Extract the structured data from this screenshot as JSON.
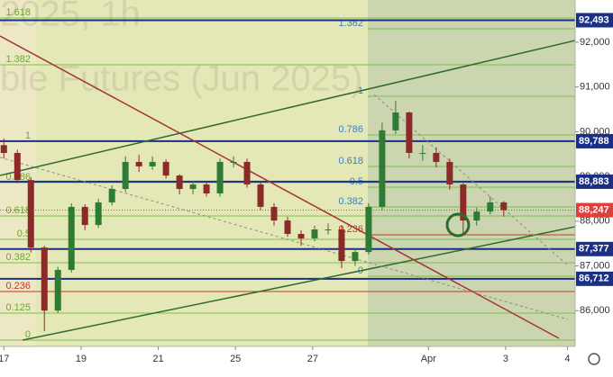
{
  "chart_data": {
    "type": "candlestick",
    "watermark": [
      "2025, 1h",
      "ble Futures (Jun 2025)"
    ],
    "xlim": [
      -0.1,
      14.8
    ],
    "xticks": [
      {
        "value": 0,
        "label": "17"
      },
      {
        "value": 2,
        "label": "19"
      },
      {
        "value": 4,
        "label": "21"
      },
      {
        "value": 6,
        "label": "25"
      },
      {
        "value": 8,
        "label": "27"
      },
      {
        "value": 11,
        "label": "Apr"
      },
      {
        "value": 13,
        "label": "3"
      },
      {
        "value": 14.6,
        "label": "4"
      }
    ],
    "ylim": [
      85200,
      92945
    ],
    "yticks": [
      {
        "value": 86000,
        "label": "86,000"
      },
      {
        "value": 87000,
        "label": "87,000"
      },
      {
        "value": 88000,
        "label": "88,000"
      },
      {
        "value": 89000,
        "label": "89,000"
      },
      {
        "value": 90000,
        "label": "90,000"
      },
      {
        "value": 91000,
        "label": "91,000"
      },
      {
        "value": 92000,
        "label": "92,000"
      }
    ],
    "up_color": "#2f7a34",
    "down_color": "#8c2a2a",
    "x": [
      0,
      0.35,
      0.7,
      1.05,
      1.4,
      1.75,
      2.1,
      2.45,
      2.8,
      3.15,
      3.5,
      3.85,
      4.2,
      4.55,
      4.9,
      5.25,
      5.6,
      5.95,
      6.3,
      6.65,
      7,
      7.35,
      7.7,
      8.05,
      8.4,
      8.75,
      9.1,
      9.45,
      9.8,
      10.15,
      10.5,
      10.85,
      11.2,
      11.55,
      11.9,
      12.25,
      12.6,
      12.95
    ],
    "open": [
      89700,
      89525,
      88920,
      87410,
      86000,
      86910,
      88320,
      87915,
      88420,
      88720,
      89325,
      89225,
      89325,
      89020,
      88720,
      88820,
      88620,
      89325,
      89325,
      88820,
      88320,
      88015,
      87715,
      87615,
      87815,
      87815,
      87110,
      87310,
      88320,
      90030,
      90430,
      89525,
      89525,
      89325,
      88820,
      88015,
      88215,
      88420
    ],
    "high": [
      89850,
      89600,
      88980,
      87450,
      86980,
      88400,
      88380,
      88500,
      88800,
      89450,
      89480,
      89450,
      89380,
      89050,
      88900,
      88900,
      89400,
      89450,
      89400,
      88900,
      88400,
      88100,
      87800,
      87900,
      87950,
      87900,
      87400,
      88400,
      90200,
      90690,
      90450,
      89700,
      89650,
      89400,
      88850,
      88300,
      88550,
      88450
    ],
    "low": [
      89400,
      88850,
      87300,
      85540,
      85950,
      86850,
      87800,
      87850,
      88350,
      88650,
      89100,
      89150,
      88950,
      88600,
      88600,
      88550,
      88550,
      89200,
      88750,
      88250,
      87900,
      87650,
      87450,
      87550,
      87700,
      86950,
      87000,
      87250,
      88250,
      89950,
      89400,
      89350,
      89200,
      88700,
      87700,
      87900,
      88150,
      88100
    ],
    "close": [
      89525,
      88920,
      87410,
      86000,
      86910,
      88320,
      87915,
      88420,
      88720,
      89325,
      89225,
      89325,
      89020,
      88720,
      88820,
      88620,
      89325,
      89325,
      88820,
      88320,
      88015,
      87715,
      87615,
      87815,
      87815,
      87110,
      87310,
      88320,
      90030,
      90430,
      89525,
      89525,
      89325,
      88820,
      88015,
      88215,
      88420,
      88247
    ],
    "price_levels": [
      {
        "value": 92493,
        "label": "92,493"
      },
      {
        "value": 89788,
        "label": "89,788"
      },
      {
        "value": 88883,
        "label": "88,883"
      },
      {
        "value": 87377,
        "label": "87,377"
      },
      {
        "value": 86712,
        "label": "86,712"
      }
    ],
    "level_color": "#1a2f86",
    "current_price": {
      "value": 88247,
      "label": "88,247",
      "color": "#e0403a"
    },
    "fib_left": [
      {
        "label": "1.618",
        "value": 92543
      },
      {
        "label": "1.382",
        "value": 91497
      },
      {
        "label": "1",
        "value": 89787
      },
      {
        "label": "0.786",
        "value": 88861
      },
      {
        "label": "0.618",
        "value": 88117
      },
      {
        "label": "0.5",
        "value": 87594
      },
      {
        "label": "0.382",
        "value": 87070
      },
      {
        "label": "0.236",
        "value": 86427
      },
      {
        "label": "0.125",
        "value": 85944
      },
      {
        "label": "0",
        "value": 85340
      }
    ],
    "fib_right": [
      {
        "label": "1.382",
        "value": 92302
      },
      {
        "label": "1",
        "value": 90793
      },
      {
        "label": "0.786",
        "value": 89928
      },
      {
        "label": "0.618",
        "value": 89223
      },
      {
        "label": "0.5",
        "value": 88761
      },
      {
        "label": "0.382",
        "value": 88318
      },
      {
        "label": "0.236",
        "value": 87694
      },
      {
        "label": "0",
        "value": 86768
      }
    ]
  }
}
